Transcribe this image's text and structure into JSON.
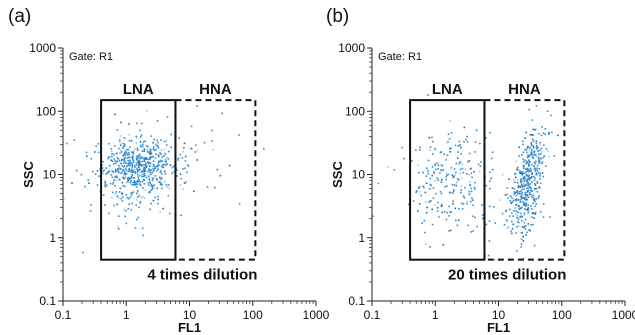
{
  "chart_data": [
    {
      "type": "scatter",
      "panel_label": "(a)",
      "gate_label": "Gate: R1",
      "xlabel": "FL1",
      "ylabel": "SSC",
      "x_scale": "log",
      "y_scale": "log",
      "xlim": [
        0.1,
        1000
      ],
      "ylim": [
        0.1,
        1000
      ],
      "x_ticks": [
        "0.1",
        "1",
        "10",
        "100",
        "1000"
      ],
      "y_ticks": [
        "0.1",
        "1",
        "10",
        "100",
        "1000"
      ],
      "point_color": "#3a8fd0",
      "regions": [
        {
          "label": "LNA",
          "style": "solid",
          "x": [
            0.4,
            6
          ],
          "y": [
            0.45,
            150
          ]
        },
        {
          "label": "HNA",
          "style": "dashed",
          "x": [
            6,
            110
          ],
          "y": [
            0.45,
            150
          ]
        }
      ],
      "annotation": "4 times dilution",
      "clusters": [
        {
          "center": [
            1.5,
            13
          ],
          "spread": [
            0.28,
            0.22
          ],
          "count": 480
        },
        {
          "center": [
            1.2,
            8
          ],
          "spread": [
            0.4,
            0.4
          ],
          "count": 160
        },
        {
          "center": [
            12,
            20
          ],
          "spread": [
            0.4,
            0.3
          ],
          "count": 40
        }
      ]
    },
    {
      "type": "scatter",
      "panel_label": "(b)",
      "gate_label": "Gate: R1",
      "xlabel": "FL1",
      "ylabel": "SSC",
      "x_scale": "log",
      "y_scale": "log",
      "xlim": [
        0.1,
        1000
      ],
      "ylim": [
        0.1,
        1000
      ],
      "x_ticks": [
        "0.1",
        "1",
        "10",
        "100",
        "1000"
      ],
      "y_ticks": [
        "0.1",
        "1",
        "10",
        "100",
        "1000"
      ],
      "point_color": "#3a8fd0",
      "regions": [
        {
          "label": "LNA",
          "style": "solid",
          "x": [
            0.4,
            6
          ],
          "y": [
            0.45,
            150
          ]
        },
        {
          "label": "HNA",
          "style": "dashed",
          "x": [
            6,
            110
          ],
          "y": [
            0.45,
            150
          ]
        }
      ],
      "annotation": "20 times dilution",
      "clusters": [
        {
          "center": [
            1.8,
            8
          ],
          "spread": [
            0.38,
            0.4
          ],
          "count": 260
        },
        {
          "center": [
            28,
            9
          ],
          "spread": [
            0.15,
            0.32
          ],
          "count": 380,
          "correlated": true
        },
        {
          "center": [
            25,
            2.5
          ],
          "spread": [
            0.15,
            0.25
          ],
          "count": 90
        }
      ]
    }
  ]
}
